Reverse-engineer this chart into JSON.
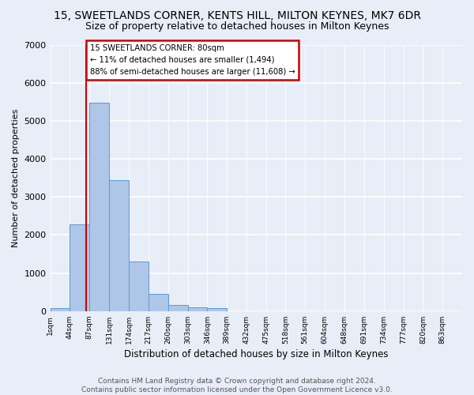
{
  "title": "15, SWEETLANDS CORNER, KENTS HILL, MILTON KEYNES, MK7 6DR",
  "subtitle": "Size of property relative to detached houses in Milton Keynes",
  "xlabel": "Distribution of detached houses by size in Milton Keynes",
  "ylabel": "Number of detached properties",
  "footer_line1": "Contains HM Land Registry data © Crown copyright and database right 2024.",
  "footer_line2": "Contains public sector information licensed under the Open Government Licence v3.0.",
  "bin_labels": [
    "1sqm",
    "44sqm",
    "87sqm",
    "131sqm",
    "174sqm",
    "217sqm",
    "260sqm",
    "303sqm",
    "346sqm",
    "389sqm",
    "432sqm",
    "475sqm",
    "518sqm",
    "561sqm",
    "604sqm",
    "648sqm",
    "691sqm",
    "734sqm",
    "777sqm",
    "820sqm",
    "863sqm"
  ],
  "bar_heights": [
    70,
    2270,
    5480,
    3450,
    1310,
    460,
    165,
    90,
    75,
    0,
    0,
    0,
    0,
    0,
    0,
    0,
    0,
    0,
    0,
    0
  ],
  "bar_color": "#aec6e8",
  "bar_edge_color": "#5b9bd5",
  "background_color": "#e8eef7",
  "grid_color": "#ffffff",
  "annotation_text_line1": "15 SWEETLANDS CORNER: 80sqm",
  "annotation_text_line2": "← 11% of detached houses are smaller (1,494)",
  "annotation_text_line3": "88% of semi-detached houses are larger (11,608) →",
  "annotation_box_color": "#ffffff",
  "annotation_border_color": "#cc0000",
  "vline_color": "#cc0000",
  "ylim": [
    0,
    7000
  ],
  "title_fontsize": 10,
  "subtitle_fontsize": 9,
  "footer_fontsize": 6.5
}
